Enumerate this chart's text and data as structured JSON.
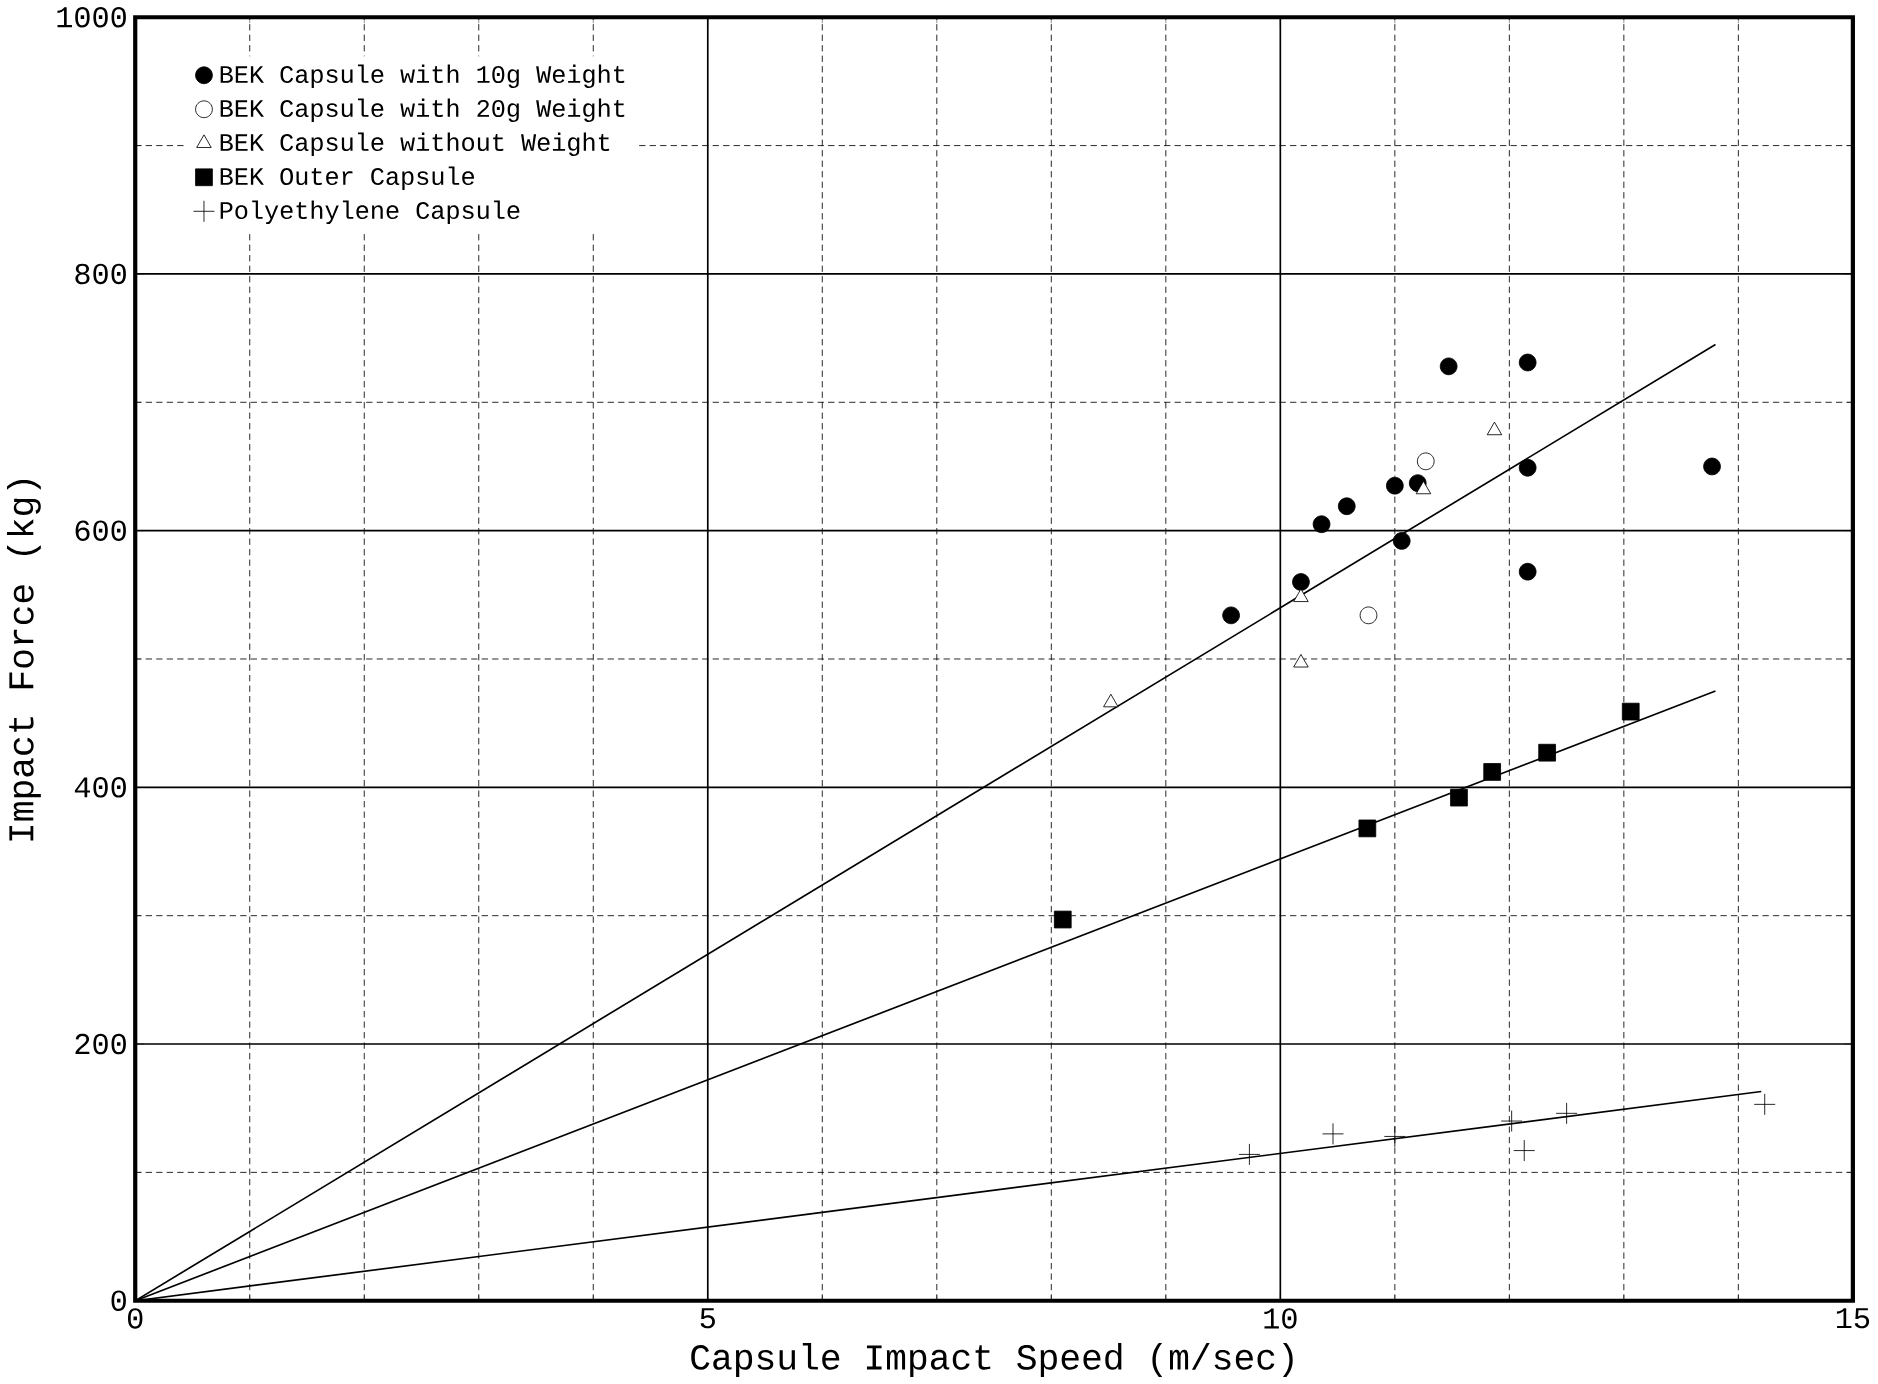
{
  "chart_data": {
    "type": "scatter",
    "xlabel": "Capsule Impact Speed (m/sec)",
    "ylabel": "Impact Force (kg)",
    "xlim": [
      0,
      15
    ],
    "ylim": [
      0,
      1000
    ],
    "xticks": [
      0,
      5,
      10,
      15
    ],
    "yticks": [
      0,
      200,
      400,
      600,
      800,
      1000
    ],
    "grid": true,
    "legend": "top left",
    "series": [
      {
        "name": "BEK Capsule with 10g Weight",
        "color": "#000000",
        "marker": "circle",
        "x": [
          9.57,
          10.18,
          10.36,
          10.58,
          11.06,
          11.0,
          11.2,
          11.47,
          12.16,
          12.16,
          12.16,
          13.77
        ],
        "values": [
          534,
          560,
          605,
          619,
          592,
          635,
          637,
          728,
          731,
          649,
          568,
          650
        ]
      },
      {
        "name": "BEK Capsule with 20g Weight",
        "color": "#ffffff",
        "marker": "circle",
        "x": [
          10.77,
          11.27
        ],
        "values": [
          534,
          654
        ]
      },
      {
        "name": "BEK Capsule without Weight",
        "color": "#ffffff",
        "marker": "triangle",
        "x": [
          8.52,
          10.18,
          10.18,
          11.25,
          11.87
        ],
        "values": [
          466,
          548,
          497,
          632,
          678
        ]
      },
      {
        "name": "BEK Outer Capsule",
        "color": "#000000",
        "marker": "square",
        "x": [
          8.1,
          10.76,
          11.56,
          11.85,
          12.33,
          13.06
        ],
        "values": [
          297,
          368,
          392,
          412,
          427,
          459
        ]
      },
      {
        "name": "Polyethylene Capsule",
        "color": "#000000",
        "marker": "cross",
        "x": [
          9.73,
          10.46,
          11.0,
          12.02,
          12.13,
          12.5,
          14.23
        ],
        "values": [
          114,
          130,
          128,
          140,
          117,
          146,
          153
        ]
      },
      {
        "type": "line",
        "color": "#000000",
        "x": [
          0,
          13.8
        ],
        "values": [
          0,
          745
        ]
      },
      {
        "type": "line",
        "color": "#000000",
        "x": [
          0,
          13.8
        ],
        "values": [
          0,
          475
        ]
      },
      {
        "type": "line",
        "color": "#000000",
        "x": [
          0,
          14.2
        ],
        "values": [
          0,
          163
        ]
      }
    ]
  }
}
